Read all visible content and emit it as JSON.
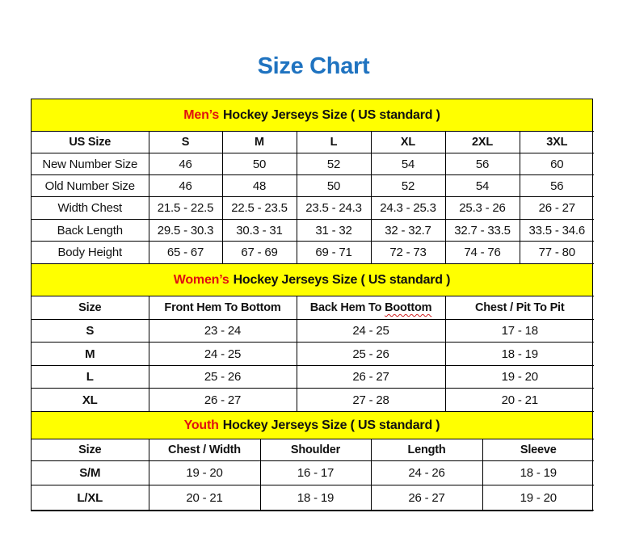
{
  "title": "Size Chart",
  "colors": {
    "title": "#1f73c0",
    "band": "#ffff00",
    "highlight": "#e01010"
  },
  "sections": [
    {
      "highlight": "Men’s",
      "heading": "Hockey Jerseys Size ( US standard )",
      "columns": [
        "US Size",
        "S",
        "M",
        "L",
        "XL",
        "2XL",
        "3XL"
      ],
      "rows": [
        [
          "New Number Size",
          "46",
          "50",
          "52",
          "54",
          "56",
          "60"
        ],
        [
          "Old Number Size",
          "46",
          "48",
          "50",
          "52",
          "54",
          "56"
        ],
        [
          "Width Chest",
          "21.5 - 22.5",
          "22.5 - 23.5",
          "23.5 - 24.3",
          "24.3 - 25.3",
          "25.3 - 26",
          "26 - 27"
        ],
        [
          "Back Length",
          "29.5 - 30.3",
          "30.3 - 31",
          "31 - 32",
          "32 - 32.7",
          "32.7 - 33.5",
          "33.5 - 34.6"
        ],
        [
          "Body Height",
          "65 - 67",
          "67 - 69",
          "69 - 71",
          "72 - 73",
          "74 - 76",
          "77 - 80"
        ]
      ]
    },
    {
      "highlight": "Women’s",
      "heading": "Hockey Jerseys Size ( US standard )",
      "columns": [
        "Size",
        "Front Hem To Bottom",
        "Back Hem To Boottom",
        "Chest / Pit To Pit"
      ],
      "rows": [
        [
          "S",
          "23 - 24",
          "24 - 25",
          "17 - 18"
        ],
        [
          "M",
          "24 - 25",
          "25 - 26",
          "18 - 19"
        ],
        [
          "L",
          "25 - 26",
          "26 - 27",
          "19 - 20"
        ],
        [
          "XL",
          "26 - 27",
          "27 - 28",
          "20 - 21"
        ]
      ]
    },
    {
      "highlight": "Youth",
      "heading": "Hockey Jerseys Size ( US standard )",
      "columns": [
        "Size",
        "Chest / Width",
        "Shoulder",
        "Length",
        "Sleeve"
      ],
      "rows": [
        [
          "S/M",
          "19 - 20",
          "16 - 17",
          "24 - 26",
          "18 - 19"
        ],
        [
          "L/XL",
          "20 - 21",
          "18 - 19",
          "26 - 27",
          "19 - 20"
        ]
      ]
    }
  ]
}
